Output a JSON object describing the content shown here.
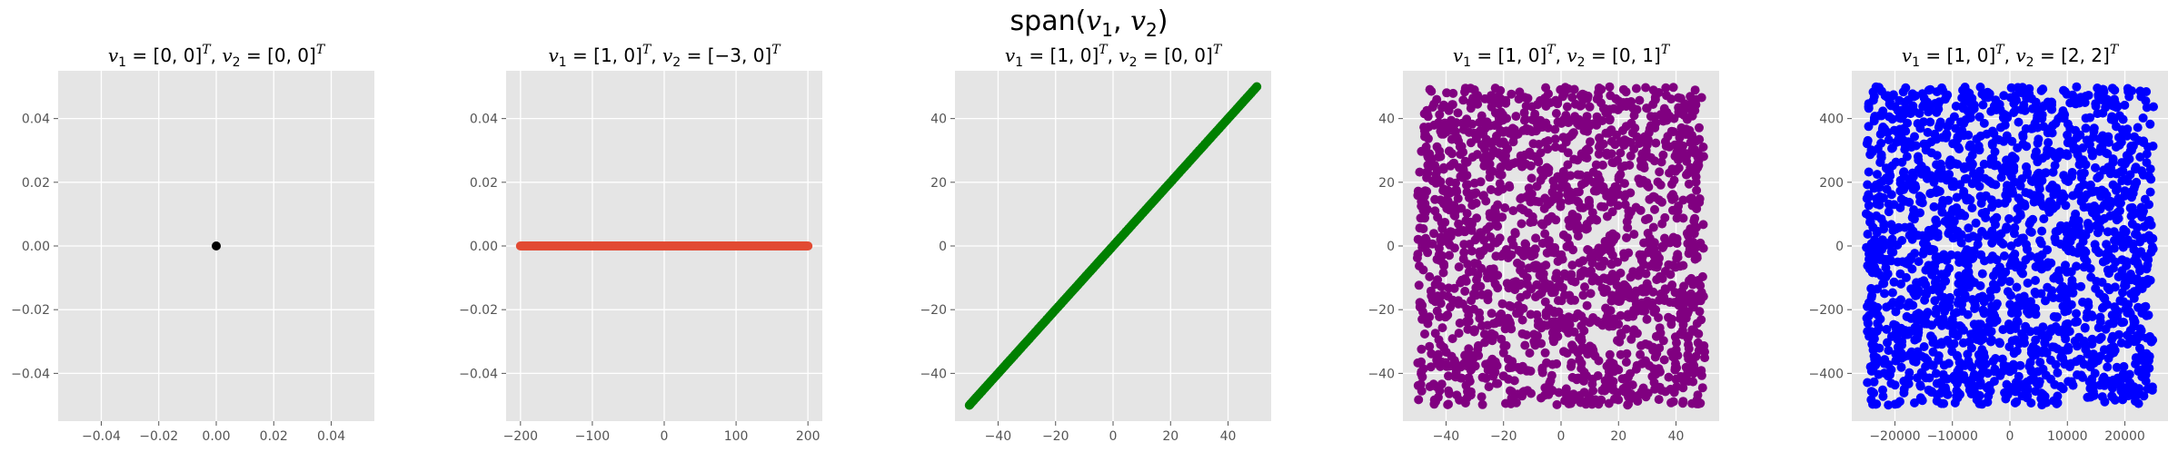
{
  "suptitle": "span(v1, v2)",
  "style": {
    "axes_bg": "#e5e5e5",
    "grid": "#ffffff",
    "tick_text": "#555555"
  },
  "chart_data": [
    {
      "type": "scatter",
      "title": "v1 = [0, 0]^T, v2 = [0, 0]^T",
      "color": "#000000",
      "xlim": [
        -0.055,
        0.055
      ],
      "ylim": [
        -0.055,
        0.055
      ],
      "xticks": [
        -0.04,
        -0.02,
        0.0,
        0.02,
        0.04
      ],
      "xtick_labels": [
        "−0.04",
        "−0.02",
        "0.00",
        "0.02",
        "0.04"
      ],
      "yticks": [
        -0.04,
        -0.02,
        0.0,
        0.02,
        0.04
      ],
      "ytick_labels": [
        "−0.04",
        "−0.02",
        "0.00",
        "0.02",
        "0.04"
      ],
      "points": "single point at (0, 0)",
      "grid": true
    },
    {
      "type": "scatter",
      "title": "v1 = [1, 0]^T, v2 = [−3, 0]^T",
      "color": "#e24a33",
      "xlim": [
        -220,
        220
      ],
      "ylim": [
        -0.055,
        0.055
      ],
      "xticks": [
        -200,
        -100,
        0,
        100,
        200
      ],
      "xtick_labels": [
        "−200",
        "−100",
        "0",
        "100",
        "200"
      ],
      "yticks": [
        -0.04,
        -0.02,
        0.0,
        0.02,
        0.04
      ],
      "ytick_labels": [
        "−0.04",
        "−0.02",
        "0.00",
        "0.02",
        "0.04"
      ],
      "points": "dense points along y = 0, x from -200 to 200",
      "grid": true
    },
    {
      "type": "scatter",
      "title": "v1 = [1, 0]^T, v2 = [0, 0]^T",
      "color": "#008000",
      "xlim": [
        -55,
        55
      ],
      "ylim": [
        -55,
        55
      ],
      "xticks": [
        -40,
        -20,
        0,
        20,
        40
      ],
      "xtick_labels": [
        "−40",
        "−20",
        "0",
        "20",
        "40"
      ],
      "yticks": [
        -40,
        -20,
        0,
        20,
        40
      ],
      "ytick_labels": [
        "−40",
        "−20",
        "0",
        "20",
        "40"
      ],
      "points": "dense points along y = x, from -50 to 50",
      "grid": true
    },
    {
      "type": "scatter",
      "title": "v1 = [1, 0]^T, v2 = [0, 1]^T",
      "color": "#800080",
      "xlim": [
        -55,
        55
      ],
      "ylim": [
        -55,
        55
      ],
      "xticks": [
        -40,
        -20,
        0,
        20,
        40
      ],
      "xtick_labels": [
        "−40",
        "−20",
        "0",
        "20",
        "40"
      ],
      "yticks": [
        -40,
        -20,
        0,
        20,
        40
      ],
      "ytick_labels": [
        "−40",
        "−20",
        "0",
        "20",
        "40"
      ],
      "points": "uniform random cloud, x in [-50, 50], y in [-50, 50]",
      "grid": true
    },
    {
      "type": "scatter",
      "title": "v1 = [1, 0]^T, v2 = [2, 2]^T",
      "color": "#0000ff",
      "xlim": [
        -27500,
        27500
      ],
      "ylim": [
        -550,
        550
      ],
      "xticks": [
        -20000,
        -10000,
        0,
        10000,
        20000
      ],
      "xtick_labels": [
        "−20000",
        "−10000",
        "0",
        "10000",
        "20000"
      ],
      "yticks": [
        -400,
        -200,
        0,
        200,
        400
      ],
      "ytick_labels": [
        "−400",
        "−200",
        "0",
        "200",
        "400"
      ],
      "points": "uniform random cloud, x in [-25000, 25000], y in [-500, 500]",
      "grid": true
    }
  ]
}
